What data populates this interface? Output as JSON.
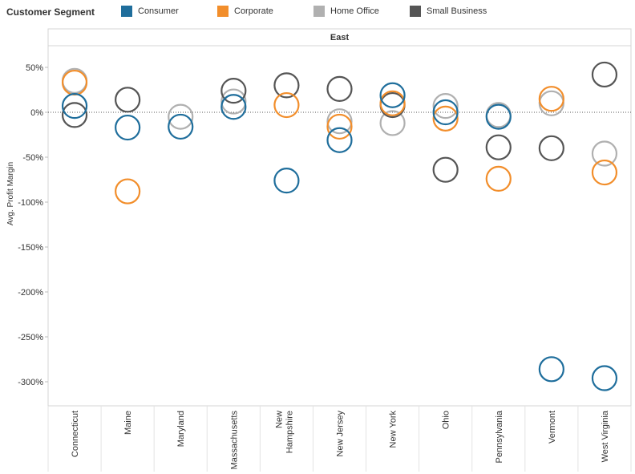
{
  "legend": {
    "title": "Customer Segment",
    "items": [
      {
        "label": "Consumer",
        "color": "#1f6e9c"
      },
      {
        "label": "Corporate",
        "color": "#f28e2b"
      },
      {
        "label": "Home Office",
        "color": "#b0b0b0"
      },
      {
        "label": "Small Business",
        "color": "#555555"
      }
    ]
  },
  "chart_data": {
    "type": "scatter",
    "panel_title": "East",
    "ylabel": "Avg. Profit Margin",
    "xlabel": "",
    "ylim": [
      -325,
      75
    ],
    "yticks": [
      50,
      0,
      -50,
      -100,
      -150,
      -200,
      -250,
      -300
    ],
    "ytick_labels": [
      "50%",
      "0%",
      "-50%",
      "-100%",
      "-150%",
      "-200%",
      "-250%",
      "-300%"
    ],
    "reference_line": 0,
    "grid": false,
    "legend_position": "top",
    "categories": [
      "Connecticut",
      "Maine",
      "Maryland",
      "Massachusetts",
      "New Hampshire",
      "New Jersey",
      "New York",
      "Ohio",
      "Pennsylvania",
      "Vermont",
      "West Virginia"
    ],
    "category_labels": [
      [
        "Connecticut"
      ],
      [
        "Maine"
      ],
      [
        "Maryland"
      ],
      [
        "Massachusetts"
      ],
      [
        "New",
        "Hampshire"
      ],
      [
        "New Jersey"
      ],
      [
        "New York"
      ],
      [
        "Ohio"
      ],
      [
        "Pennsylvania"
      ],
      [
        "Vermont"
      ],
      [
        "West Virginia"
      ]
    ],
    "series": [
      {
        "name": "Home Office",
        "color": "#b0b0b0",
        "values": [
          35,
          null,
          -5,
          12,
          null,
          -10,
          -12,
          7,
          -3,
          10,
          -46
        ]
      },
      {
        "name": "Small Business",
        "color": "#555555",
        "values": [
          -3,
          14,
          null,
          24,
          30,
          26,
          8,
          -64,
          -39,
          -40,
          42
        ]
      },
      {
        "name": "Corporate",
        "color": "#f28e2b",
        "values": [
          33,
          -88,
          null,
          null,
          8,
          -16,
          10,
          -7,
          -74,
          15,
          -67
        ]
      },
      {
        "name": "Consumer",
        "color": "#1f6e9c",
        "values": [
          7,
          -17,
          -16,
          6,
          -76,
          -31,
          19,
          0,
          -5,
          -286,
          -296
        ]
      }
    ]
  }
}
